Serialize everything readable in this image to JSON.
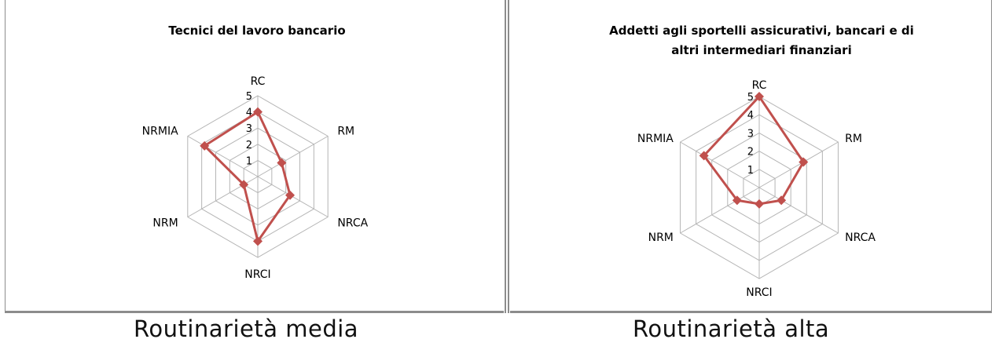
{
  "chart_data": [
    {
      "type": "radar",
      "title": "Tecnici del lavoro bancario",
      "categories": [
        "RC",
        "RM",
        "NRCA",
        "NRCI",
        "NRM",
        "NRMIA"
      ],
      "series": [
        {
          "values": [
            4,
            1.7,
            2.3,
            4,
            1,
            3.8
          ]
        }
      ],
      "rlim": [
        0,
        5
      ],
      "ticks": [
        "1",
        "2",
        "3",
        "4",
        "5"
      ],
      "grid": true,
      "series_color": "#c0504d"
    },
    {
      "type": "radar",
      "title": "Addetti agli sportelli assicurativi, bancari e di altri intermediari finanziari",
      "title_lines": [
        "Addetti agli sportelli assicurativi, bancari e di",
        "altri intermediari finanziari"
      ],
      "categories": [
        "RC",
        "RM",
        "NRCA",
        "NRCI",
        "NRM",
        "NRMIA"
      ],
      "series": [
        {
          "values": [
            5,
            2.8,
            1.4,
            0.9,
            1.4,
            3.5
          ]
        }
      ],
      "rlim": [
        0,
        5
      ],
      "ticks": [
        "1",
        "2",
        "3",
        "4",
        "5"
      ],
      "grid": true,
      "series_color": "#c0504d"
    }
  ],
  "captions": {
    "left": "Routinarietà media",
    "right": "Routinarietà alta"
  },
  "colors": {
    "grid": "#b5b5b5",
    "series": "#c0504d",
    "panel_border": "#8c8c8c"
  }
}
